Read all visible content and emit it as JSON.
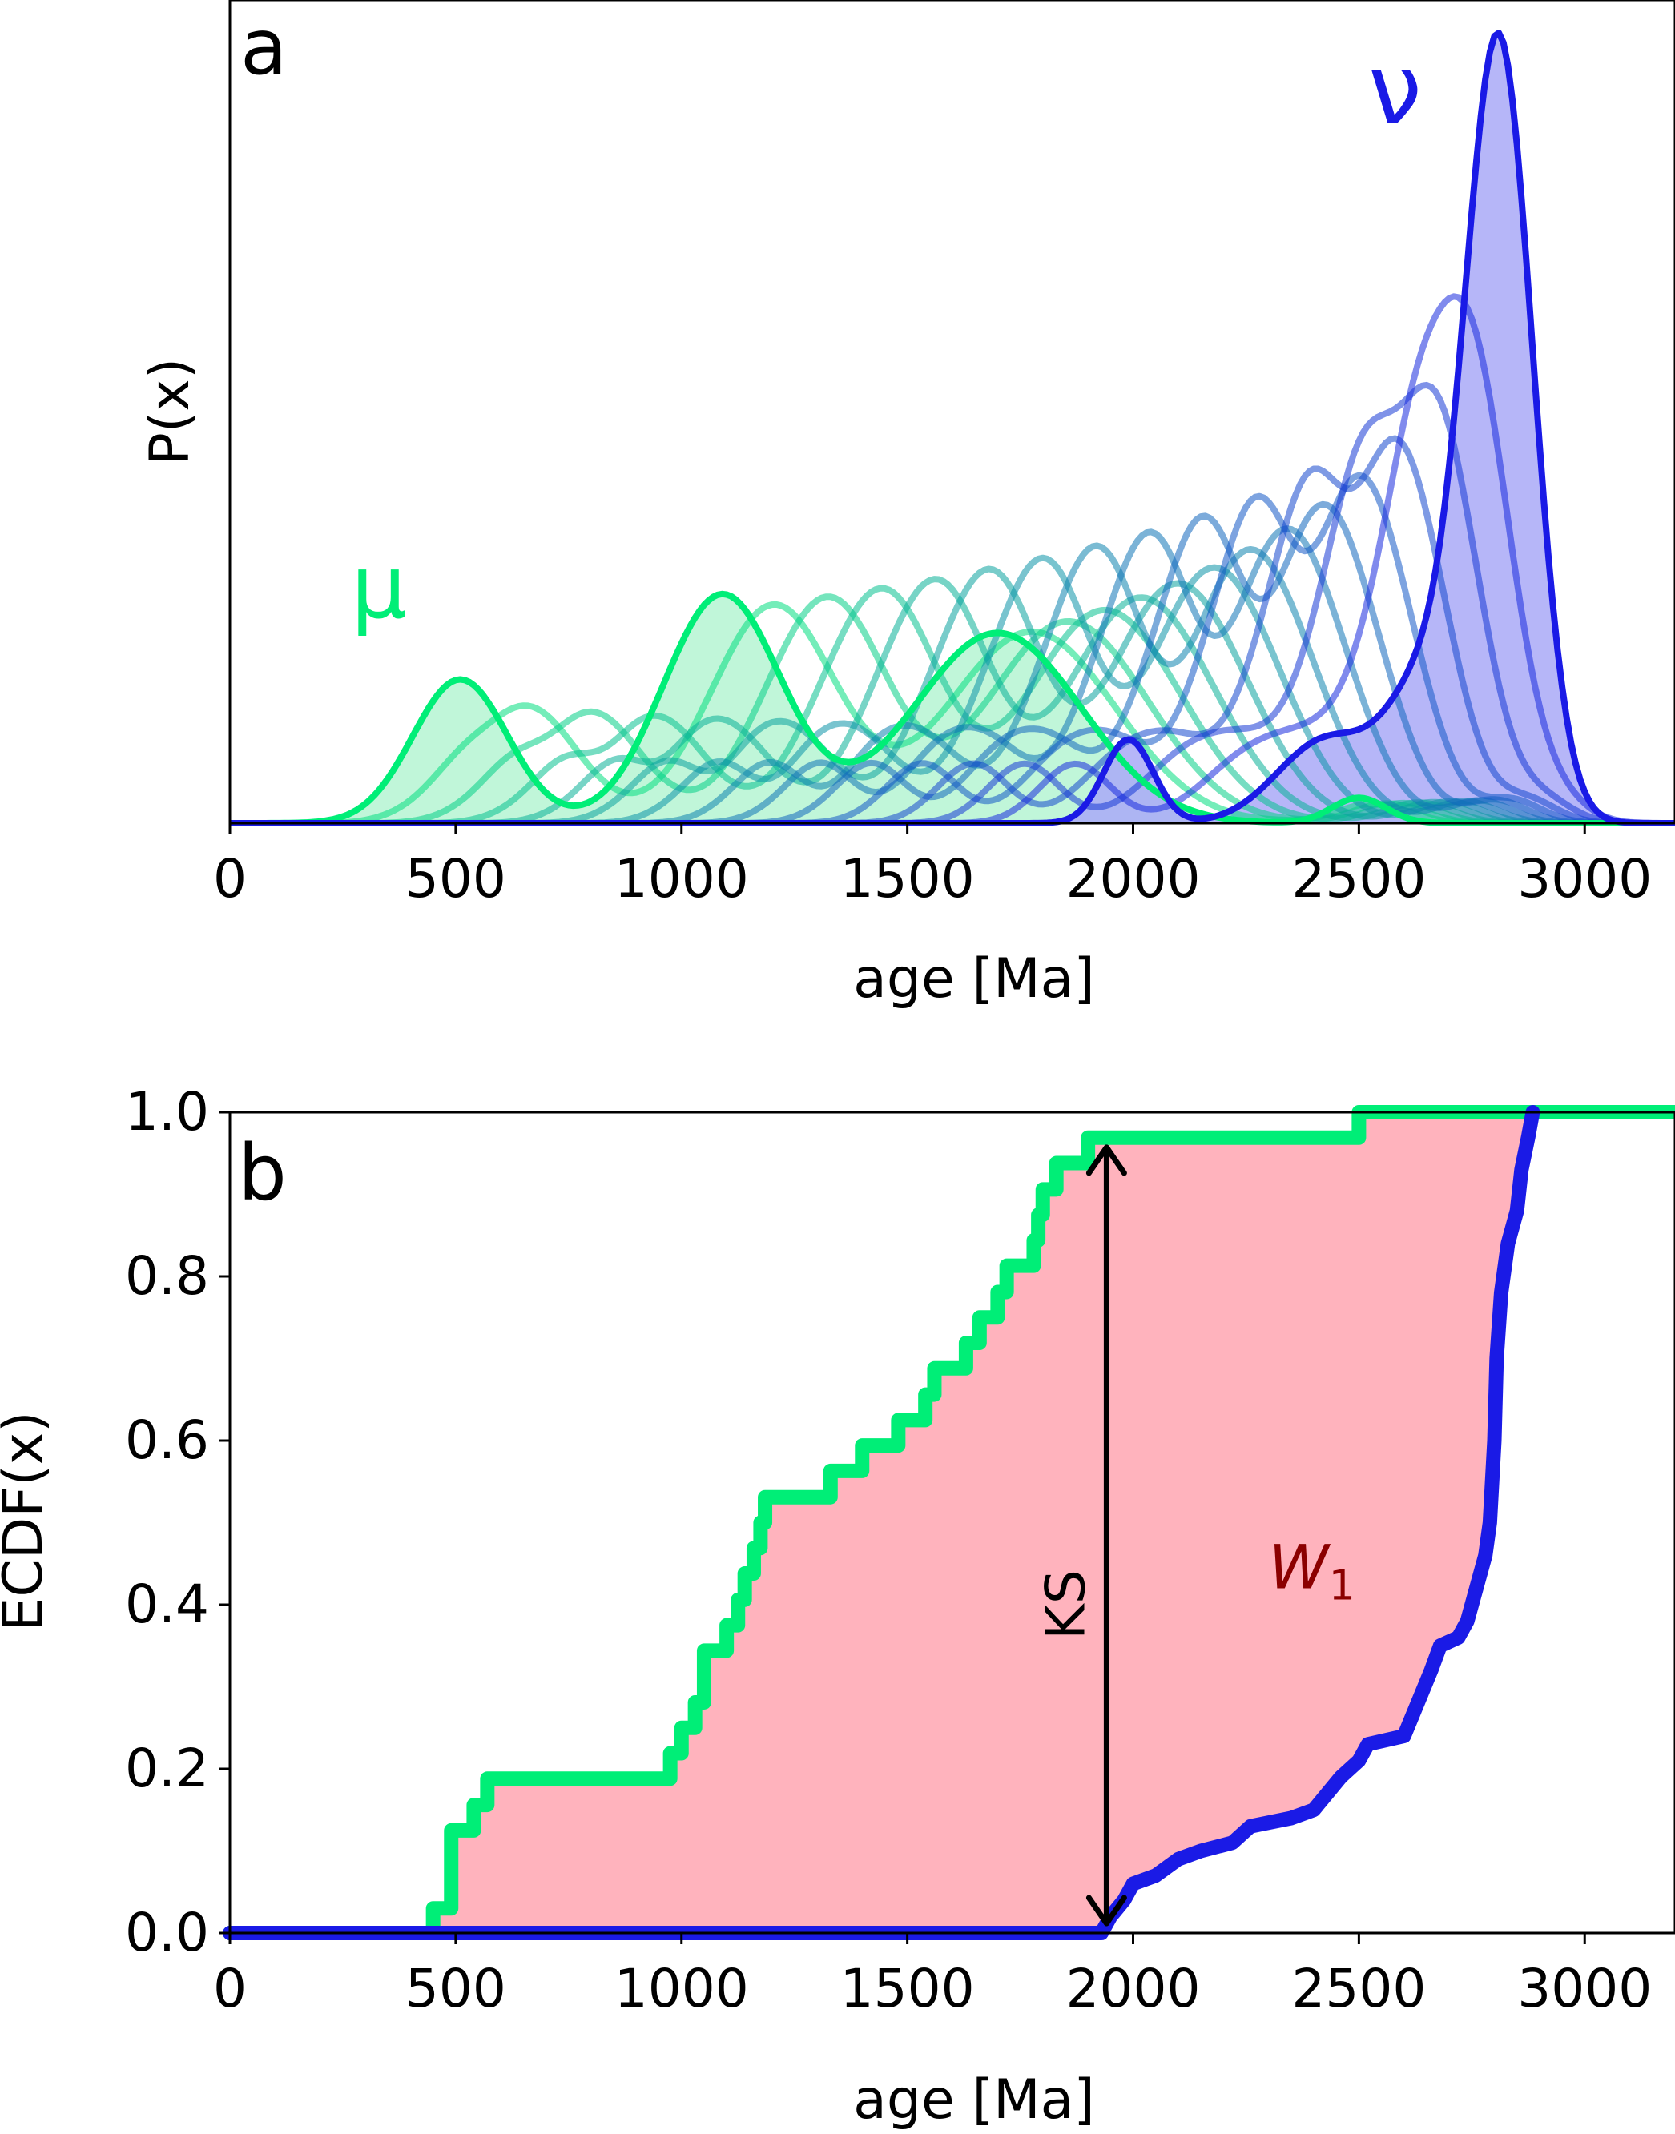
{
  "colors": {
    "mu": "#00ee77",
    "nu": "#1a1ae6",
    "mu_fill": "#b9f5d5",
    "nu_fill": "#a9a9f7",
    "w1_fill": "#ffb3bd",
    "w1_text": "#8b0000",
    "axis": "#000000"
  },
  "chart_data": [
    {
      "type": "line",
      "panel_label": "a",
      "xlabel": "age [Ma]",
      "ylabel": "P(x)",
      "xlim": [
        0,
        3200
      ],
      "ylim": [
        0,
        1.0
      ],
      "xticks": [
        0,
        500,
        1000,
        1500,
        2000,
        2500,
        3000
      ],
      "show_yticks": false,
      "grid": false,
      "annotations": [
        {
          "text": "μ",
          "x": 330,
          "y": 0.25,
          "color": "mu"
        },
        {
          "text": "ν",
          "x": 2580,
          "y": 0.85,
          "color": "nu"
        }
      ],
      "mu": {
        "name": "μ",
        "components": [
          {
            "mean": 510,
            "sd": 105,
            "amp": 0.17
          },
          {
            "mean": 1090,
            "sd": 130,
            "amp": 0.27
          },
          {
            "mean": 1700,
            "sd": 185,
            "amp": 0.225
          },
          {
            "mean": 2500,
            "sd": 60,
            "amp": 0.03
          }
        ]
      },
      "nu": {
        "name": "ν",
        "components": [
          {
            "mean": 2810,
            "sd": 75,
            "amp": 0.93
          },
          {
            "mean": 2640,
            "sd": 80,
            "amp": 0.14
          },
          {
            "mean": 2430,
            "sd": 110,
            "amp": 0.1
          },
          {
            "mean": 1990,
            "sd": 55,
            "amp": 0.1
          }
        ]
      },
      "n_interpolated": 13
    },
    {
      "type": "line",
      "panel_label": "b",
      "xlabel": "age [Ma]",
      "ylabel": "ECDF(x)",
      "xlim": [
        0,
        3200
      ],
      "ylim": [
        0,
        1.0
      ],
      "xticks": [
        0,
        500,
        1000,
        1500,
        2000,
        2500,
        3000
      ],
      "yticks": [
        0.0,
        0.2,
        0.4,
        0.6,
        0.8,
        1.0
      ],
      "ytick_labels": [
        "0.0",
        "0.2",
        "0.4",
        "0.6",
        "0.8",
        "1.0"
      ],
      "grid": false,
      "series": [
        {
          "name": "μ",
          "color": "mu",
          "steps": [
            [
              0,
              0.0
            ],
            [
              450,
              0.03
            ],
            [
              490,
              0.125
            ],
            [
              540,
              0.156
            ],
            [
              570,
              0.188
            ],
            [
              975,
              0.219
            ],
            [
              1000,
              0.25
            ],
            [
              1030,
              0.281
            ],
            [
              1050,
              0.344
            ],
            [
              1100,
              0.375
            ],
            [
              1125,
              0.406
            ],
            [
              1140,
              0.438
            ],
            [
              1160,
              0.469
            ],
            [
              1175,
              0.5
            ],
            [
              1185,
              0.531
            ],
            [
              1330,
              0.563
            ],
            [
              1400,
              0.594
            ],
            [
              1480,
              0.625
            ],
            [
              1540,
              0.656
            ],
            [
              1560,
              0.688
            ],
            [
              1630,
              0.719
            ],
            [
              1660,
              0.75
            ],
            [
              1700,
              0.781
            ],
            [
              1720,
              0.813
            ],
            [
              1780,
              0.844
            ],
            [
              1790,
              0.875
            ],
            [
              1800,
              0.906
            ],
            [
              1830,
              0.938
            ],
            [
              1900,
              0.969
            ],
            [
              2500,
              1.0
            ],
            [
              3200,
              1.0
            ]
          ]
        },
        {
          "name": "ν",
          "color": "nu",
          "points": [
            [
              0,
              0.0
            ],
            [
              1930,
              0.0
            ],
            [
              1950,
              0.02
            ],
            [
              1980,
              0.04
            ],
            [
              2000,
              0.06
            ],
            [
              2050,
              0.07
            ],
            [
              2100,
              0.09
            ],
            [
              2150,
              0.1
            ],
            [
              2220,
              0.11
            ],
            [
              2260,
              0.13
            ],
            [
              2350,
              0.14
            ],
            [
              2400,
              0.15
            ],
            [
              2430,
              0.17
            ],
            [
              2460,
              0.19
            ],
            [
              2500,
              0.21
            ],
            [
              2520,
              0.23
            ],
            [
              2600,
              0.24
            ],
            [
              2630,
              0.28
            ],
            [
              2660,
              0.32
            ],
            [
              2680,
              0.35
            ],
            [
              2720,
              0.36
            ],
            [
              2740,
              0.38
            ],
            [
              2760,
              0.42
            ],
            [
              2780,
              0.46
            ],
            [
              2790,
              0.5
            ],
            [
              2800,
              0.6
            ],
            [
              2805,
              0.7
            ],
            [
              2815,
              0.78
            ],
            [
              2830,
              0.84
            ],
            [
              2850,
              0.88
            ],
            [
              2860,
              0.93
            ],
            [
              2875,
              0.97
            ],
            [
              2885,
              1.0
            ]
          ]
        }
      ],
      "annotations": [
        {
          "text": "KS",
          "type": "double-arrow",
          "x": 1920,
          "y_from": 0.0,
          "y_to": 0.965
        },
        {
          "text": "W",
          "subscript": "1",
          "x": 2300,
          "y": 0.42,
          "color": "w1_text"
        }
      ]
    }
  ]
}
